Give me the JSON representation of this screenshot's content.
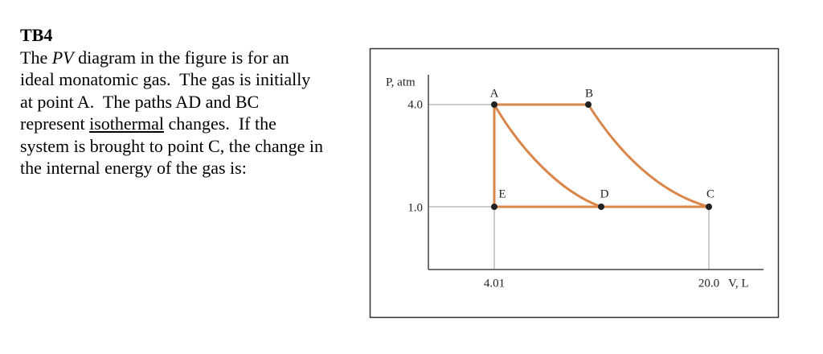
{
  "question": {
    "title": "TB4",
    "lines": [
      [
        {
          "text": "The "
        },
        {
          "text": "PV",
          "style": "italic"
        },
        {
          "text": " diagram in the figure is for an"
        }
      ],
      [
        {
          "text": "ideal monatomic gas.  The gas is initially"
        }
      ],
      [
        {
          "text": "at point A.  The paths AD and BC"
        }
      ],
      [
        {
          "text": "represent "
        },
        {
          "text": "isothermal",
          "style": "underline"
        },
        {
          "text": " changes.  If the"
        }
      ],
      [
        {
          "text": "system is brought to point C, the change in"
        }
      ],
      [
        {
          "text": "the internal energy of the gas is:"
        }
      ]
    ]
  },
  "figure": {
    "y_axis_label": "P, atm",
    "x_axis_label": "V, L",
    "y_ticks": [
      "4.0",
      "1.0"
    ],
    "x_ticks": [
      "4.01",
      "20.0"
    ],
    "points": [
      "A",
      "B",
      "C",
      "D",
      "E"
    ]
  }
}
